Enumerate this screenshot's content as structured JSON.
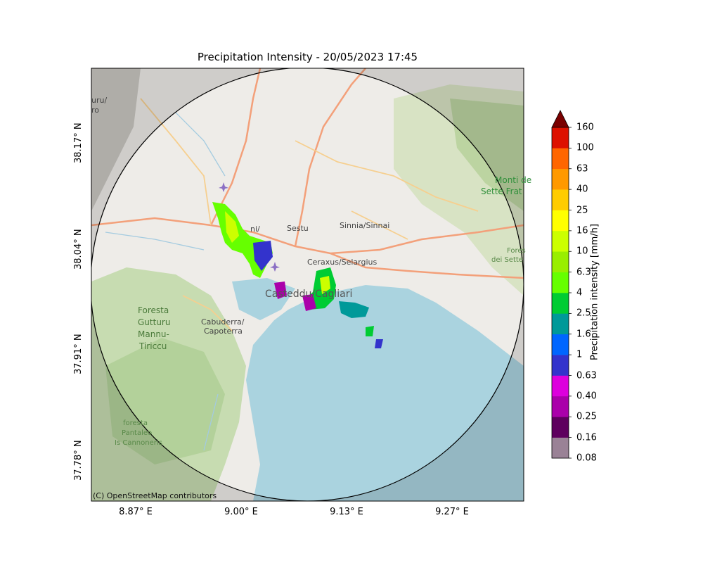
{
  "title": "Precipitation Intensity - 20/05/2023 17:45",
  "axes": {
    "x_ticks": [
      "8.87° E",
      "9.00° E",
      "9.13° E",
      "9.27° E"
    ],
    "y_ticks": [
      "38.17° N",
      "38.04° N",
      "37.91° N",
      "37.78° N"
    ]
  },
  "colorbar": {
    "label": "Precipitation intensity [mm/h]",
    "levels": [
      "0.08",
      "0.16",
      "0.25",
      "0.40",
      "0.63",
      "1",
      "1.6",
      "2.5",
      "4",
      "6.3",
      "10",
      "16",
      "25",
      "40",
      "63",
      "100",
      "160"
    ],
    "colors": [
      "#9a8296",
      "#5e005e",
      "#aa00aa",
      "#dd00dd",
      "#3333cc",
      "#0066ff",
      "#009999",
      "#00cc33",
      "#66ff00",
      "#99ee00",
      "#ccff00",
      "#ffff00",
      "#ffcc00",
      "#ff9900",
      "#ff6600",
      "#dd1100"
    ],
    "extend_color": "#7a0000"
  },
  "map": {
    "place_labels": {
      "sestu": "Sestu",
      "sinnia": "Sinnia/Sinnai",
      "cerasus": "Ceraxus/Selargius",
      "cagliari": "Casteddu/Cagliari",
      "cabuderra": "Cabuderra/",
      "capoterra": "Capoterra",
      "foresta1": "Foresta",
      "foresta2": "Gutturu",
      "foresta3": "Mannu-",
      "foresta4": "Tiriccu",
      "monti1": "Monti de",
      "monti2": "Sette Frat",
      "forest_small1": "foresta",
      "forest_small2": "Pantaleo",
      "forest_small3": "Is Cannoneris",
      "elmas": "ni/",
      "ur": "uru/",
      "ro": "ro",
      "fores_e1": "Fores",
      "fores_e2": "dei Sette"
    },
    "attribution": "(C) OpenStreetMap contributors"
  }
}
